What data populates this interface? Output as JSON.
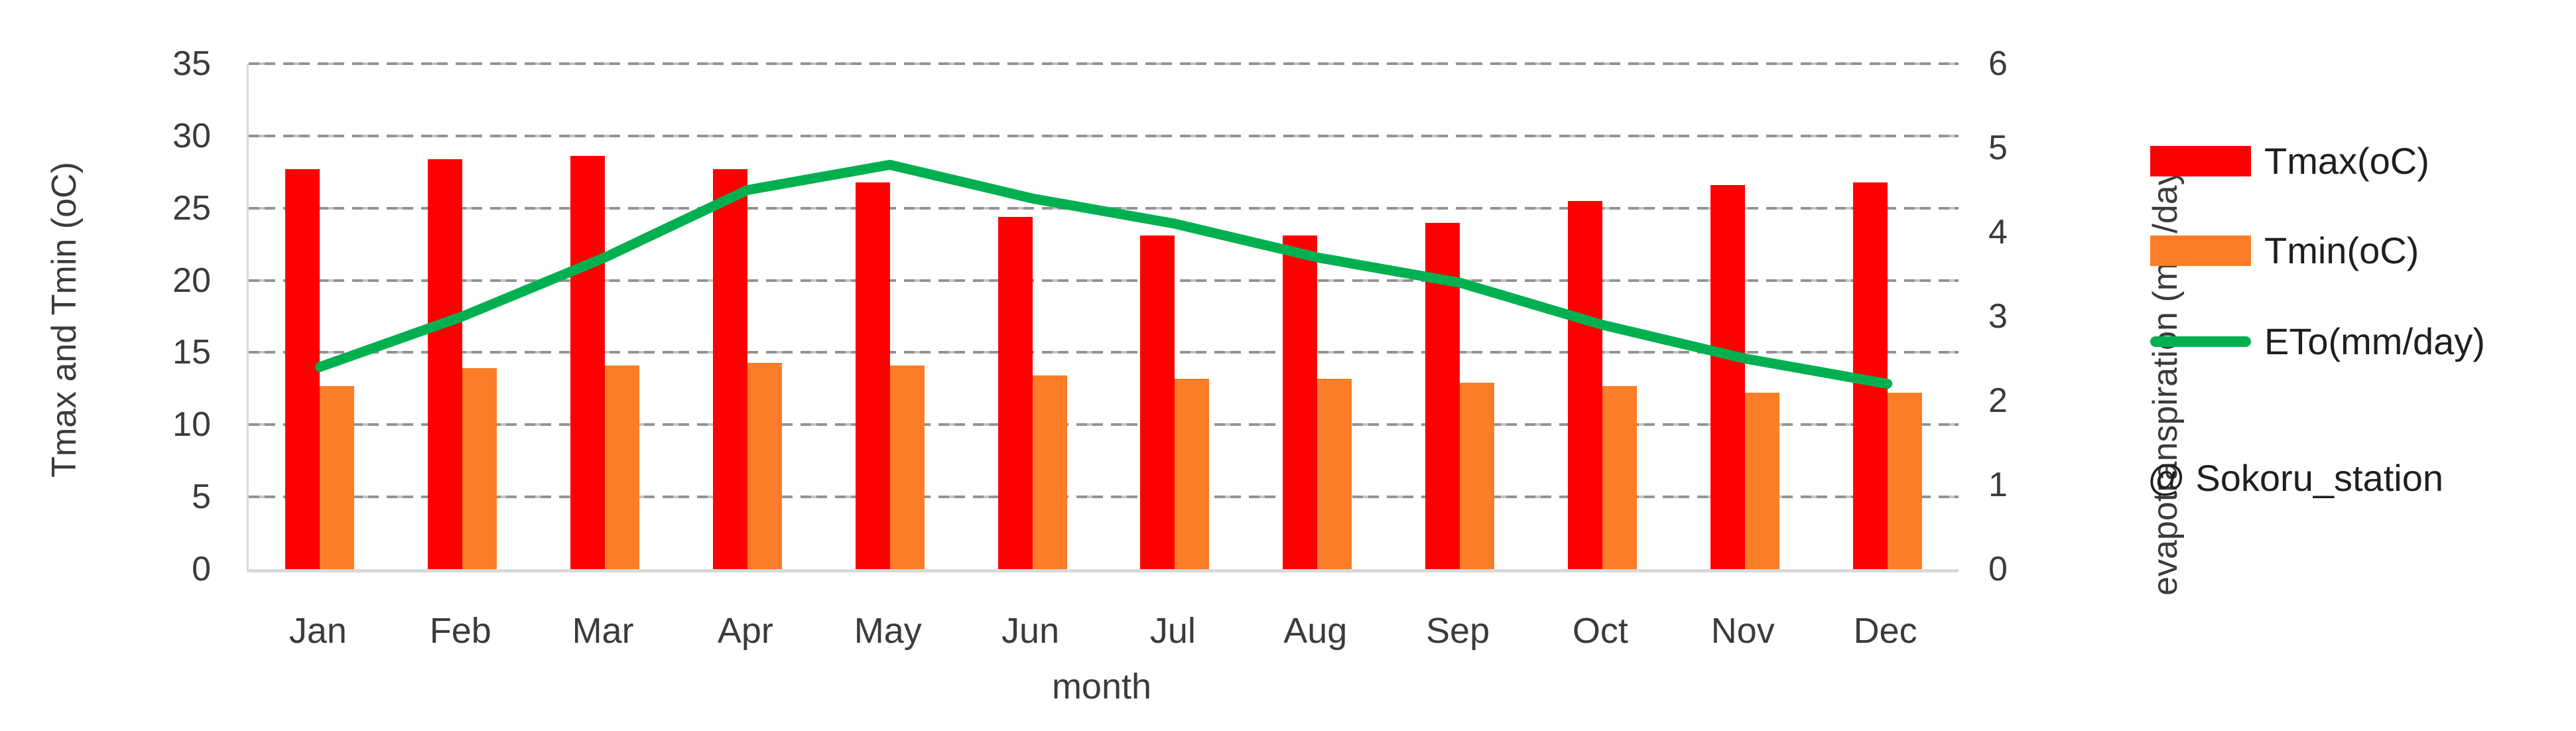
{
  "chart_data": {
    "type": "combo-bar-line",
    "categories": [
      "Jan",
      "Feb",
      "Mar",
      "Apr",
      "May",
      "Jun",
      "Jul",
      "Aug",
      "Sep",
      "Oct",
      "Nov",
      "Dec"
    ],
    "series": [
      {
        "name": "Tmax(oC)",
        "type": "bar",
        "axis": "left",
        "color": "#FF0000",
        "values": [
          27.7,
          28.4,
          28.6,
          27.7,
          26.8,
          24.4,
          23.1,
          23.1,
          24.0,
          25.5,
          26.6,
          26.8
        ]
      },
      {
        "name": "Tmin(oC)",
        "type": "bar",
        "axis": "left",
        "color": "#FB7D28",
        "values": [
          12.7,
          13.9,
          14.1,
          14.3,
          14.1,
          13.4,
          13.2,
          13.2,
          12.9,
          12.7,
          12.2,
          12.2
        ]
      },
      {
        "name": "ETo(mm/day)",
        "type": "line",
        "axis": "right",
        "color": "#00B050",
        "values": [
          2.4,
          3.0,
          3.7,
          4.5,
          4.8,
          4.4,
          4.1,
          3.7,
          3.4,
          2.9,
          2.5,
          2.2
        ]
      }
    ],
    "left_axis": {
      "title": "Tmax and Tmin (oC)",
      "min": 0,
      "max": 35,
      "step": 5,
      "ticks": [
        "0",
        "5",
        "10",
        "15",
        "20",
        "25",
        "30",
        "35"
      ]
    },
    "right_axis": {
      "title": "evapotranspiration (mm/day)",
      "min": 0,
      "max": 6,
      "step": 1,
      "ticks": [
        "0",
        "1",
        "2",
        "3",
        "4",
        "5",
        "6"
      ]
    },
    "x_axis": {
      "title": "month"
    },
    "annotation": "@ Sokoru_station",
    "legend_position": "right",
    "grid": "horizontal-dashed",
    "gridline_color": "#8d8d8d",
    "axis_line_color": "#d9d9d9"
  }
}
